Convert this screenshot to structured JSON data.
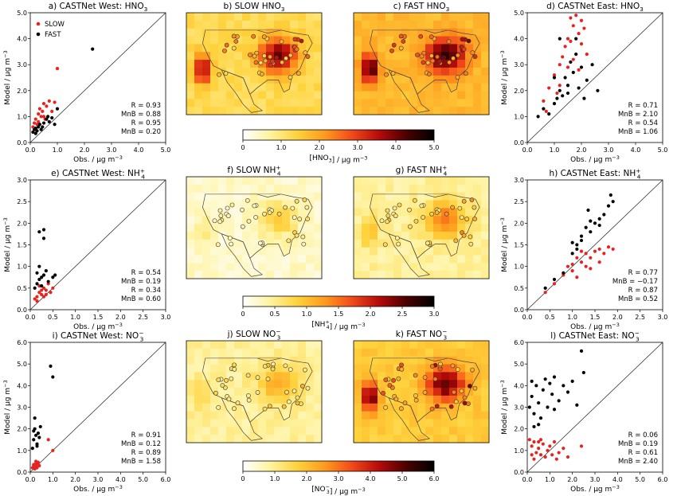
{
  "chart_data": {
    "type": "scatter",
    "legend": {
      "placement": "top-left",
      "entries": [
        "SLOW",
        "FAST"
      ],
      "colors": [
        "#e8231f",
        "#000000"
      ]
    },
    "axis_text": {
      "xlabel": "Obs. / μg m",
      "ylabel": "Model / μg m",
      "exponent": "−3"
    },
    "scatter_panels": [
      {
        "title": "a) CASTNet West: HNO",
        "sub": "3",
        "sup": "",
        "lim": 5,
        "ticks": [
          "0.0",
          "1.0",
          "2.0",
          "3.0",
          "4.0",
          "5.0"
        ],
        "stats": [
          "R = 0.93",
          "MnB = 0.88",
          "R = 0.95",
          "MnB = 0.20"
        ],
        "slow": [
          [
            0.1,
            0.6
          ],
          [
            0.15,
            0.75
          ],
          [
            0.2,
            0.9
          ],
          [
            0.25,
            0.7
          ],
          [
            0.3,
            1.1
          ],
          [
            0.35,
            1.3
          ],
          [
            0.4,
            1.0
          ],
          [
            0.45,
            1.2
          ],
          [
            0.5,
            1.5
          ],
          [
            0.55,
            0.9
          ],
          [
            0.6,
            1.4
          ],
          [
            0.7,
            1.6
          ],
          [
            0.8,
            1.2
          ],
          [
            0.9,
            1.55
          ],
          [
            1.0,
            2.85
          ],
          [
            0.2,
            0.5
          ],
          [
            0.3,
            0.8
          ],
          [
            0.5,
            1.0
          ]
        ],
        "fast": [
          [
            0.1,
            0.4
          ],
          [
            0.15,
            0.5
          ],
          [
            0.2,
            0.55
          ],
          [
            0.25,
            0.45
          ],
          [
            0.3,
            0.6
          ],
          [
            0.35,
            0.7
          ],
          [
            0.4,
            0.5
          ],
          [
            0.5,
            0.75
          ],
          [
            0.6,
            0.9
          ],
          [
            0.7,
            0.8
          ],
          [
            0.8,
            0.95
          ],
          [
            0.9,
            0.7
          ],
          [
            1.0,
            1.3
          ],
          [
            2.3,
            3.6
          ],
          [
            0.2,
            0.35
          ],
          [
            0.45,
            0.6
          ],
          [
            0.65,
            1.0
          ]
        ]
      },
      {
        "title": "d) CASTNet East: HNO",
        "sub": "3",
        "sup": "",
        "lim": 5,
        "ticks": [
          "0.0",
          "1.0",
          "2.0",
          "3.0",
          "4.0",
          "5.0"
        ],
        "stats": [
          "R = 0.71",
          "MnB = 2.10",
          "R = 0.54",
          "MnB = 1.06"
        ],
        "slow": [
          [
            0.6,
            1.6
          ],
          [
            0.8,
            2.1
          ],
          [
            1.0,
            2.6
          ],
          [
            1.2,
            3.0
          ],
          [
            1.3,
            3.3
          ],
          [
            1.4,
            3.7
          ],
          [
            1.5,
            4.0
          ],
          [
            1.6,
            4.8
          ],
          [
            1.7,
            4.5
          ],
          [
            1.8,
            4.9
          ],
          [
            1.9,
            4.2
          ],
          [
            2.0,
            3.8
          ],
          [
            2.1,
            4.4
          ],
          [
            2.2,
            3.4
          ],
          [
            1.5,
            2.9
          ],
          [
            1.7,
            3.2
          ],
          [
            1.2,
            2.2
          ],
          [
            1.9,
            2.8
          ],
          [
            1.1,
            1.9
          ],
          [
            0.7,
            1.2
          ],
          [
            1.6,
            3.9
          ],
          [
            2.0,
            4.7
          ]
        ],
        "fast": [
          [
            0.4,
            1.0
          ],
          [
            0.6,
            1.3
          ],
          [
            0.8,
            1.1
          ],
          [
            1.0,
            1.5
          ],
          [
            1.1,
            1.7
          ],
          [
            1.2,
            2.0
          ],
          [
            1.3,
            1.8
          ],
          [
            1.4,
            2.5
          ],
          [
            1.5,
            2.2
          ],
          [
            1.6,
            3.1
          ],
          [
            1.7,
            2.7
          ],
          [
            1.8,
            3.4
          ],
          [
            1.9,
            2.1
          ],
          [
            2.0,
            2.9
          ],
          [
            2.2,
            2.4
          ],
          [
            2.4,
            3.0
          ],
          [
            2.6,
            2.0
          ],
          [
            1.5,
            1.9
          ],
          [
            1.2,
            4.0
          ],
          [
            1.8,
            4.0
          ],
          [
            2.1,
            1.7
          ],
          [
            1.0,
            2.5
          ]
        ]
      },
      {
        "title": "e) CASTNet West: NH",
        "sub": "4",
        "sup": "+",
        "lim": 3,
        "ticks": [
          "0.0",
          "0.5",
          "1.0",
          "1.5",
          "2.0",
          "2.5",
          "3.0"
        ],
        "stats": [
          "R = 0.54",
          "MnB = 0.19",
          "R = 0.34",
          "MnB = 0.60"
        ],
        "slow": [
          [
            0.1,
            0.25
          ],
          [
            0.15,
            0.3
          ],
          [
            0.2,
            0.4
          ],
          [
            0.25,
            0.35
          ],
          [
            0.3,
            0.5
          ],
          [
            0.35,
            0.45
          ],
          [
            0.2,
            0.55
          ],
          [
            0.3,
            0.3
          ],
          [
            0.4,
            0.6
          ],
          [
            0.5,
            0.5
          ],
          [
            0.15,
            0.2
          ],
          [
            0.25,
            0.45
          ],
          [
            0.35,
            0.35
          ],
          [
            0.45,
            0.4
          ]
        ],
        "fast": [
          [
            0.1,
            0.5
          ],
          [
            0.15,
            0.6
          ],
          [
            0.2,
            0.7
          ],
          [
            0.25,
            0.55
          ],
          [
            0.3,
            0.8
          ],
          [
            0.35,
            0.9
          ],
          [
            0.4,
            0.65
          ],
          [
            0.5,
            0.75
          ],
          [
            0.55,
            0.8
          ],
          [
            0.2,
            1.8
          ],
          [
            0.3,
            1.85
          ],
          [
            0.3,
            1.65
          ],
          [
            0.2,
            1.0
          ],
          [
            0.15,
            0.85
          ],
          [
            0.25,
            0.75
          ]
        ]
      },
      {
        "title": "h) CASTNet East: NH",
        "sub": "4",
        "sup": "+",
        "lim": 3,
        "ticks": [
          "0.0",
          "0.5",
          "1.0",
          "1.5",
          "2.0",
          "2.5",
          "3.0"
        ],
        "stats": [
          "R = 0.77",
          "MnB = −0.17",
          "R = 0.87",
          "MnB = 0.52"
        ],
        "slow": [
          [
            0.4,
            0.4
          ],
          [
            0.6,
            0.6
          ],
          [
            0.8,
            0.8
          ],
          [
            0.9,
            1.0
          ],
          [
            1.0,
            0.9
          ],
          [
            1.1,
            1.2
          ],
          [
            1.2,
            1.1
          ],
          [
            1.3,
            1.3
          ],
          [
            1.4,
            1.2
          ],
          [
            1.5,
            1.35
          ],
          [
            1.6,
            1.4
          ],
          [
            1.7,
            1.3
          ],
          [
            1.8,
            1.45
          ],
          [
            1.9,
            1.4
          ],
          [
            1.0,
            1.05
          ],
          [
            1.2,
            1.35
          ],
          [
            1.4,
            0.95
          ],
          [
            1.1,
            0.75
          ],
          [
            1.6,
            1.1
          ],
          [
            1.3,
            1.0
          ]
        ],
        "fast": [
          [
            0.4,
            0.5
          ],
          [
            0.6,
            0.7
          ],
          [
            0.8,
            0.85
          ],
          [
            1.0,
            1.3
          ],
          [
            1.1,
            1.5
          ],
          [
            1.2,
            1.6
          ],
          [
            1.3,
            1.9
          ],
          [
            1.4,
            1.8
          ],
          [
            1.5,
            2.0
          ],
          [
            1.6,
            2.1
          ],
          [
            1.7,
            2.2
          ],
          [
            1.8,
            2.4
          ],
          [
            1.9,
            2.5
          ],
          [
            1.85,
            2.65
          ],
          [
            1.2,
            1.7
          ],
          [
            1.4,
            2.05
          ],
          [
            1.0,
            1.55
          ],
          [
            1.35,
            2.3
          ],
          [
            1.6,
            1.95
          ],
          [
            1.1,
            1.4
          ]
        ]
      },
      {
        "title": "i) CASTNet West: NO",
        "sub": "3",
        "sup": "−",
        "lim": 6,
        "ticks": [
          "0.0",
          "1.0",
          "2.0",
          "3.0",
          "4.0",
          "5.0",
          "6.0"
        ],
        "stats": [
          "R = 0.91",
          "MnB = 0.12",
          "R = 0.89",
          "MnB = 1.58"
        ],
        "slow": [
          [
            0.1,
            0.2
          ],
          [
            0.15,
            0.3
          ],
          [
            0.2,
            0.25
          ],
          [
            0.25,
            0.4
          ],
          [
            0.3,
            0.35
          ],
          [
            0.35,
            0.45
          ],
          [
            0.2,
            0.15
          ],
          [
            0.3,
            0.2
          ],
          [
            0.4,
            0.3
          ],
          [
            0.8,
            1.5
          ],
          [
            1.0,
            1.0
          ],
          [
            0.25,
            0.5
          ],
          [
            0.15,
            0.35
          ]
        ],
        "fast": [
          [
            0.1,
            1.1
          ],
          [
            0.15,
            1.5
          ],
          [
            0.2,
            2.0
          ],
          [
            0.25,
            1.7
          ],
          [
            0.3,
            1.3
          ],
          [
            0.35,
            1.8
          ],
          [
            0.4,
            1.6
          ],
          [
            0.45,
            2.1
          ],
          [
            0.9,
            4.9
          ],
          [
            1.0,
            4.4
          ],
          [
            0.2,
            2.5
          ],
          [
            0.3,
            1.2
          ],
          [
            0.15,
            1.9
          ]
        ]
      },
      {
        "title": "l) CASTNet East: NO",
        "sub": "3",
        "sup": "−",
        "lim": 6,
        "ticks": [
          "0.0",
          "1.0",
          "2.0",
          "3.0",
          "4.0",
          "5.0",
          "6.0"
        ],
        "stats": [
          "R = 0.06",
          "MnB = 0.19",
          "R = 0.61",
          "MnB = 2.40"
        ],
        "slow": [
          [
            0.1,
            1.5
          ],
          [
            0.2,
            1.2
          ],
          [
            0.3,
            1.4
          ],
          [
            0.4,
            0.9
          ],
          [
            0.5,
            1.1
          ],
          [
            0.6,
            0.8
          ],
          [
            0.7,
            1.3
          ],
          [
            0.8,
            0.7
          ],
          [
            0.9,
            1.0
          ],
          [
            1.0,
            1.2
          ],
          [
            1.1,
            0.8
          ],
          [
            1.2,
            1.4
          ],
          [
            1.4,
            0.9
          ],
          [
            1.6,
            1.1
          ],
          [
            1.8,
            0.7
          ],
          [
            2.4,
            1.2
          ],
          [
            0.3,
            0.6
          ],
          [
            0.5,
            1.4
          ],
          [
            0.2,
            0.8
          ],
          [
            1.3,
            0.6
          ],
          [
            0.6,
            1.5
          ]
        ],
        "fast": [
          [
            0.1,
            3.0
          ],
          [
            0.2,
            3.5
          ],
          [
            0.3,
            2.7
          ],
          [
            0.4,
            4.0
          ],
          [
            0.5,
            3.2
          ],
          [
            0.6,
            2.5
          ],
          [
            0.7,
            3.8
          ],
          [
            0.8,
            4.3
          ],
          [
            0.9,
            3.0
          ],
          [
            1.0,
            4.1
          ],
          [
            1.1,
            3.6
          ],
          [
            1.2,
            4.4
          ],
          [
            1.4,
            3.3
          ],
          [
            1.6,
            4.0
          ],
          [
            1.8,
            3.7
          ],
          [
            2.0,
            4.2
          ],
          [
            2.4,
            5.6
          ],
          [
            2.5,
            4.6
          ],
          [
            0.3,
            2.1
          ],
          [
            0.5,
            2.2
          ],
          [
            1.2,
            2.9
          ],
          [
            2.2,
            3.1
          ],
          [
            0.2,
            4.2
          ]
        ]
      }
    ],
    "map_panels": [
      {
        "title": "b) SLOW HNO",
        "sub": "3",
        "sup": ""
      },
      {
        "title": "c) FAST HNO",
        "sub": "3",
        "sup": ""
      },
      {
        "title": "f) SLOW NH",
        "sub": "4",
        "sup": "+"
      },
      {
        "title": "g) FAST NH",
        "sub": "4",
        "sup": "+"
      },
      {
        "title": "j) SLOW NO",
        "sub": "3",
        "sup": "−"
      },
      {
        "title": "k) FAST NO",
        "sub": "3",
        "sup": "−"
      }
    ],
    "colorbars": [
      {
        "ticks": [
          "0",
          "1.0",
          "2.0",
          "3.0",
          "4.0",
          "5.0"
        ],
        "label_pre": "[HNO",
        "sub": "3",
        "sup": "",
        "label_post": "] / μg m"
      },
      {
        "ticks": [
          "0",
          "0.5",
          "1.0",
          "1.5",
          "2.0",
          "2.5",
          "3.0"
        ],
        "label_pre": "[NH",
        "sub": "4",
        "sup": "+",
        "label_post": "] / μg m"
      },
      {
        "ticks": [
          "0",
          "1.0",
          "2.0",
          "3.0",
          "4.0",
          "5.0",
          "6.0"
        ],
        "label_pre": "[NO",
        "sub": "3",
        "sup": "−",
        "label_post": "] / μg m"
      }
    ],
    "colormap": [
      "#ffffff",
      "#fff3a0",
      "#ffd23c",
      "#ff9a1e",
      "#f2491a",
      "#b40a0a",
      "#4a0000",
      "#000000"
    ]
  }
}
